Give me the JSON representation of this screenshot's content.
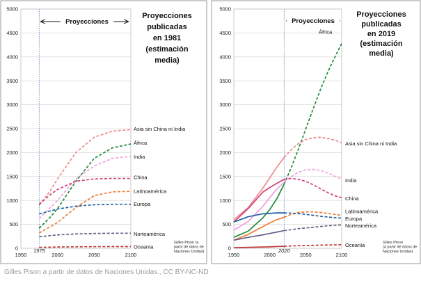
{
  "caption": "Gilles Pison a partir de datos de Naciones Unidas., CC BY-NC-ND",
  "chart_data": [
    {
      "type": "line",
      "title": [
        "Proyecciones",
        "publicadas",
        "en 1981",
        "(estimación",
        "media)"
      ],
      "projection_label": "Proyecciones",
      "projection_start": 1975,
      "projection_start_label": "1975",
      "credit": [
        "Gilles Pison (a",
        "partir de datos de",
        "Naciones Unidas)"
      ],
      "xlim": [
        1950,
        2100
      ],
      "ylim": [
        0,
        5000
      ],
      "x_ticks": [
        1950,
        2000,
        2050,
        2100
      ],
      "y_ticks": [
        0,
        500,
        1000,
        1500,
        2000,
        2500,
        3000,
        3500,
        4000,
        4500,
        5000
      ],
      "grid": true,
      "series": [
        {
          "name": "Asia sin China ni India",
          "color": "#ee8a8a",
          "style": "dashed",
          "x": [
            1975,
            1990,
            2000,
            2025,
            2050,
            2075,
            2100
          ],
          "y": [
            900,
            1200,
            1450,
            2000,
            2320,
            2450,
            2480
          ]
        },
        {
          "name": "África",
          "color": "#1f8a3a",
          "style": "dashed",
          "x": [
            1975,
            1990,
            2000,
            2025,
            2050,
            2075,
            2100
          ],
          "y": [
            420,
            650,
            830,
            1400,
            1880,
            2100,
            2180
          ]
        },
        {
          "name": "India",
          "color": "#f0a0e0",
          "style": "dashed",
          "x": [
            1975,
            1990,
            2000,
            2025,
            2050,
            2075,
            2100
          ],
          "y": [
            620,
            850,
            1000,
            1450,
            1720,
            1880,
            1920
          ]
        },
        {
          "name": "China",
          "color": "#d0407a",
          "style": "dashed",
          "x": [
            1975,
            1990,
            2000,
            2025,
            2050,
            2075,
            2100
          ],
          "y": [
            920,
            1120,
            1230,
            1400,
            1450,
            1460,
            1460
          ]
        },
        {
          "name": "Latinoamérica",
          "color": "#ee7a30",
          "style": "dashed",
          "x": [
            1975,
            1990,
            2000,
            2025,
            2050,
            2075,
            2100
          ],
          "y": [
            320,
            450,
            540,
            850,
            1100,
            1180,
            1190
          ]
        },
        {
          "name": "Europa",
          "color": "#1f5fa0",
          "style": "dashed",
          "x": [
            1975,
            1990,
            2000,
            2025,
            2050,
            2075,
            2100
          ],
          "y": [
            720,
            780,
            820,
            880,
            910,
            920,
            920
          ]
        },
        {
          "name": "Norteamérica",
          "color": "#60608a",
          "style": "dashed",
          "x": [
            1975,
            1990,
            2000,
            2025,
            2050,
            2075,
            2100
          ],
          "y": [
            240,
            265,
            280,
            300,
            310,
            315,
            315
          ]
        },
        {
          "name": "Oceanía",
          "color": "#c03a3a",
          "style": "dashed",
          "x": [
            1975,
            1990,
            2000,
            2025,
            2050,
            2075,
            2100
          ],
          "y": [
            20,
            24,
            27,
            32,
            35,
            36,
            36
          ]
        }
      ]
    },
    {
      "type": "line",
      "title": [
        "Proyecciones",
        "publicadas",
        "en 2019",
        "(estimación",
        "media)"
      ],
      "projection_label": "Proyecciones",
      "projection_start": 2020,
      "projection_start_label": "2020",
      "credit": [
        "Gilles Pison",
        "(a partir de datos de",
        "Naciones Unidas)"
      ],
      "xlim": [
        1950,
        2100
      ],
      "ylim": [
        0,
        5000
      ],
      "x_ticks": [
        1950,
        2000,
        2050,
        2100
      ],
      "y_ticks": [
        0,
        500,
        1000,
        1500,
        2000,
        2500,
        3000,
        3500,
        4000,
        4500,
        5000
      ],
      "grid": true,
      "series": [
        {
          "name": "África",
          "color": "#1f8a3a",
          "style": "solid-dashed",
          "x": [
            1950,
            1970,
            1990,
            2000,
            2010,
            2020,
            2030,
            2040,
            2050,
            2060,
            2070,
            2080,
            2090,
            2100
          ],
          "y": [
            230,
            360,
            630,
            810,
            1040,
            1340,
            1690,
            2080,
            2490,
            2900,
            3300,
            3660,
            3980,
            4280
          ]
        },
        {
          "name": "Asia sin China ni India",
          "color": "#ee8a8a",
          "style": "solid-dashed",
          "x": [
            1950,
            1970,
            1990,
            2000,
            2010,
            2020,
            2030,
            2040,
            2050,
            2060,
            2070,
            2080,
            2090,
            2100
          ],
          "y": [
            600,
            850,
            1250,
            1470,
            1700,
            1900,
            2060,
            2190,
            2270,
            2310,
            2320,
            2300,
            2260,
            2210
          ]
        },
        {
          "name": "India",
          "color": "#f0a0e0",
          "style": "solid-dashed",
          "x": [
            1950,
            1970,
            1990,
            2000,
            2010,
            2020,
            2030,
            2040,
            2050,
            2060,
            2070,
            2080,
            2090,
            2100
          ],
          "y": [
            380,
            560,
            870,
            1060,
            1240,
            1380,
            1500,
            1590,
            1640,
            1650,
            1630,
            1580,
            1510,
            1450
          ]
        },
        {
          "name": "China",
          "color": "#d0407a",
          "style": "solid-dashed",
          "x": [
            1950,
            1970,
            1990,
            2000,
            2010,
            2020,
            2030,
            2040,
            2050,
            2060,
            2070,
            2080,
            2090,
            2100
          ],
          "y": [
            550,
            830,
            1170,
            1270,
            1360,
            1440,
            1460,
            1440,
            1400,
            1330,
            1250,
            1170,
            1100,
            1060
          ]
        },
        {
          "name": "Latinoamérica",
          "color": "#ee7a30",
          "style": "solid-dashed",
          "x": [
            1950,
            1970,
            1990,
            2000,
            2010,
            2020,
            2030,
            2040,
            2050,
            2060,
            2070,
            2080,
            2090,
            2100
          ],
          "y": [
            170,
            290,
            450,
            530,
            600,
            650,
            710,
            750,
            760,
            760,
            750,
            730,
            710,
            690
          ]
        },
        {
          "name": "Europa",
          "color": "#1f5fa0",
          "style": "solid-dashed",
          "x": [
            1950,
            1970,
            1990,
            2000,
            2010,
            2020,
            2030,
            2040,
            2050,
            2060,
            2070,
            2080,
            2090,
            2100
          ],
          "y": [
            550,
            660,
            720,
            730,
            740,
            740,
            735,
            725,
            710,
            690,
            670,
            655,
            640,
            630
          ]
        },
        {
          "name": "Norteamérica",
          "color": "#60608a",
          "style": "solid-dashed",
          "x": [
            1950,
            1970,
            1990,
            2000,
            2010,
            2020,
            2030,
            2040,
            2050,
            2060,
            2070,
            2080,
            2090,
            2100
          ],
          "y": [
            170,
            230,
            280,
            310,
            340,
            370,
            390,
            410,
            425,
            440,
            455,
            470,
            480,
            490
          ]
        },
        {
          "name": "Oceanía",
          "color": "#c03a3a",
          "style": "solid-dashed",
          "x": [
            1950,
            1970,
            1990,
            2000,
            2010,
            2020,
            2030,
            2040,
            2050,
            2060,
            2070,
            2080,
            2090,
            2100
          ],
          "y": [
            13,
            20,
            27,
            31,
            37,
            43,
            49,
            54,
            58,
            62,
            66,
            69,
            72,
            75
          ]
        }
      ]
    }
  ]
}
